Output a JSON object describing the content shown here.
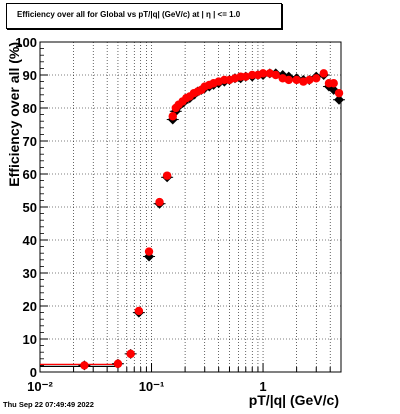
{
  "title": "Efficiency over all for Global vs pT/|q| (GeV/c) at |  η | <= 1.0",
  "footer": "Thu Sep 22 07:49:49 2022",
  "chart_data": {
    "type": "scatter",
    "title": "Efficiency over all for Global vs pT/|q| (GeV/c) at |  η | <= 1.0",
    "xlabel": "pT/|q| (GeV/c)",
    "ylabel": "Efficiency over all (%)",
    "xscale": "log",
    "xlim": [
      0.01,
      5.0
    ],
    "ylim": [
      0,
      100
    ],
    "grid": true,
    "x_ticks": [
      {
        "value": 0.01,
        "label": "10⁻²"
      },
      {
        "value": 0.1,
        "label": "10⁻¹"
      },
      {
        "value": 1,
        "label": "1"
      }
    ],
    "y_ticks": [
      {
        "value": 0,
        "label": "0"
      },
      {
        "value": 10,
        "label": "10"
      },
      {
        "value": 20,
        "label": "20"
      },
      {
        "value": 30,
        "label": "30"
      },
      {
        "value": 40,
        "label": "40"
      },
      {
        "value": 50,
        "label": "50"
      },
      {
        "value": 60,
        "label": "60"
      },
      {
        "value": 70,
        "label": "70"
      },
      {
        "value": 80,
        "label": "80"
      },
      {
        "value": 90,
        "label": "90"
      },
      {
        "value": 100,
        "label": "100"
      }
    ],
    "colors": {
      "series_black": "#000000",
      "series_red": "#ff0000",
      "grid": "#000000"
    },
    "series": [
      {
        "color": "#000000",
        "marker": "diamond",
        "points": [
          [
            0.025,
            2.0
          ],
          [
            0.05,
            2.5
          ],
          [
            0.065,
            5.5
          ],
          [
            0.077,
            18.0
          ],
          [
            0.095,
            35.0
          ],
          [
            0.118,
            51.0
          ],
          [
            0.138,
            59.0
          ],
          [
            0.155,
            76.5
          ],
          [
            0.165,
            79.0
          ],
          [
            0.175,
            80.5
          ],
          [
            0.19,
            81.5
          ],
          [
            0.205,
            82.5
          ],
          [
            0.22,
            83.0
          ],
          [
            0.24,
            84.0
          ],
          [
            0.26,
            85.0
          ],
          [
            0.28,
            85.5
          ],
          [
            0.3,
            86.0
          ],
          [
            0.33,
            86.5
          ],
          [
            0.36,
            87.0
          ],
          [
            0.4,
            87.5
          ],
          [
            0.45,
            88.0
          ],
          [
            0.5,
            88.5
          ],
          [
            0.56,
            89.0
          ],
          [
            0.63,
            89.0
          ],
          [
            0.7,
            89.5
          ],
          [
            0.8,
            89.5
          ],
          [
            0.9,
            90.0
          ],
          [
            1.0,
            90.0
          ],
          [
            1.15,
            90.5
          ],
          [
            1.3,
            90.5
          ],
          [
            1.5,
            90.0
          ],
          [
            1.7,
            89.5
          ],
          [
            2.0,
            89.0
          ],
          [
            2.3,
            88.5
          ],
          [
            2.6,
            88.5
          ],
          [
            3.0,
            89.5
          ],
          [
            3.5,
            90.0
          ],
          [
            3.9,
            86.5
          ],
          [
            4.3,
            85.5
          ],
          [
            4.8,
            82.5
          ]
        ]
      },
      {
        "color": "#ff0000",
        "marker": "circle",
        "points": [
          [
            0.025,
            2.0
          ],
          [
            0.05,
            2.5
          ],
          [
            0.065,
            5.5
          ],
          [
            0.077,
            18.5
          ],
          [
            0.095,
            36.5
          ],
          [
            0.118,
            51.5
          ],
          [
            0.138,
            59.5
          ],
          [
            0.155,
            77.5
          ],
          [
            0.165,
            80.0
          ],
          [
            0.175,
            81.0
          ],
          [
            0.19,
            82.0
          ],
          [
            0.205,
            83.0
          ],
          [
            0.22,
            83.5
          ],
          [
            0.24,
            84.5
          ],
          [
            0.26,
            85.0
          ],
          [
            0.28,
            85.5
          ],
          [
            0.3,
            86.5
          ],
          [
            0.33,
            87.0
          ],
          [
            0.36,
            87.5
          ],
          [
            0.4,
            88.0
          ],
          [
            0.45,
            88.5
          ],
          [
            0.5,
            88.5
          ],
          [
            0.56,
            89.0
          ],
          [
            0.63,
            89.5
          ],
          [
            0.7,
            89.5
          ],
          [
            0.8,
            90.0
          ],
          [
            0.9,
            90.0
          ],
          [
            1.0,
            90.5
          ],
          [
            1.15,
            90.5
          ],
          [
            1.3,
            90.0
          ],
          [
            1.5,
            89.0
          ],
          [
            1.7,
            88.5
          ],
          [
            2.0,
            88.5
          ],
          [
            2.3,
            88.0
          ],
          [
            2.6,
            88.5
          ],
          [
            3.0,
            89.0
          ],
          [
            3.5,
            90.5
          ],
          [
            3.9,
            87.5
          ],
          [
            4.3,
            87.5
          ],
          [
            4.8,
            84.5
          ]
        ]
      }
    ]
  }
}
